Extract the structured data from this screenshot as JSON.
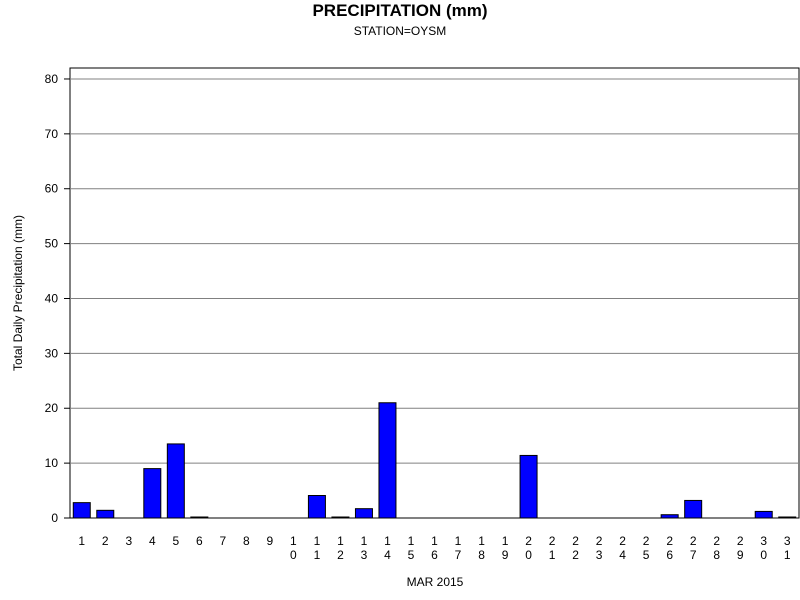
{
  "chart_data": {
    "type": "bar",
    "title": "PRECIPITATION (mm)",
    "subtitle": "STATION=OYSM",
    "xlabel": "MAR 2015",
    "ylabel": "Total Daily Precipitation (mm)",
    "ylim": [
      0,
      82
    ],
    "yticks": [
      0,
      10,
      20,
      30,
      40,
      50,
      60,
      70,
      80
    ],
    "grid": true,
    "categories": [
      "1",
      "2",
      "3",
      "4",
      "5",
      "6",
      "7",
      "8",
      "9",
      "10",
      "11",
      "12",
      "13",
      "14",
      "15",
      "16",
      "17",
      "18",
      "19",
      "20",
      "21",
      "22",
      "23",
      "24",
      "25",
      "26",
      "27",
      "28",
      "29",
      "30",
      "31"
    ],
    "values": [
      2.8,
      1.4,
      0,
      9.0,
      13.5,
      0.1,
      0,
      0,
      0,
      0,
      4.1,
      0.1,
      1.7,
      21.0,
      0,
      0,
      0,
      0,
      0,
      11.4,
      0,
      0,
      0,
      0,
      0,
      0.6,
      3.2,
      0,
      0,
      1.2,
      0.1
    ],
    "bar_color": "#0000ff",
    "grid_color": "#808080"
  }
}
